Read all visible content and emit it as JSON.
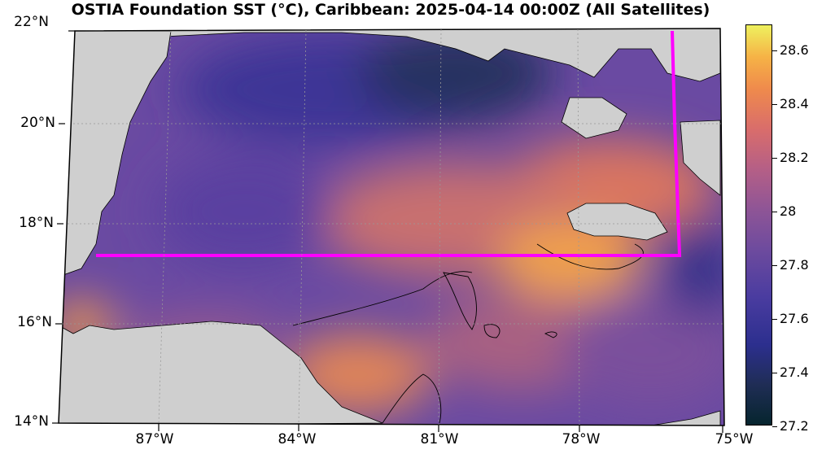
{
  "title": "OSTIA Foundation SST (°C), Caribbean: 2025-04-14 00:00Z (All Satellites)",
  "lat_labels": [
    "22°N",
    "20°N",
    "18°N",
    "16°N",
    "14°N"
  ],
  "lon_labels": [
    "87°W",
    "84°W",
    "81°W",
    "78°W",
    "75°W"
  ],
  "colorbar": {
    "ticks": [
      "28.6",
      "28.4",
      "28.2",
      "28",
      "27.8",
      "27.6",
      "27.4",
      "27.2"
    ],
    "min": 27.2,
    "max": 28.7
  },
  "colors": {
    "land": "#cfcfcf",
    "boundary": "#ff00ff",
    "cold": "#0c2a35",
    "warm": "#f0a24a"
  }
}
